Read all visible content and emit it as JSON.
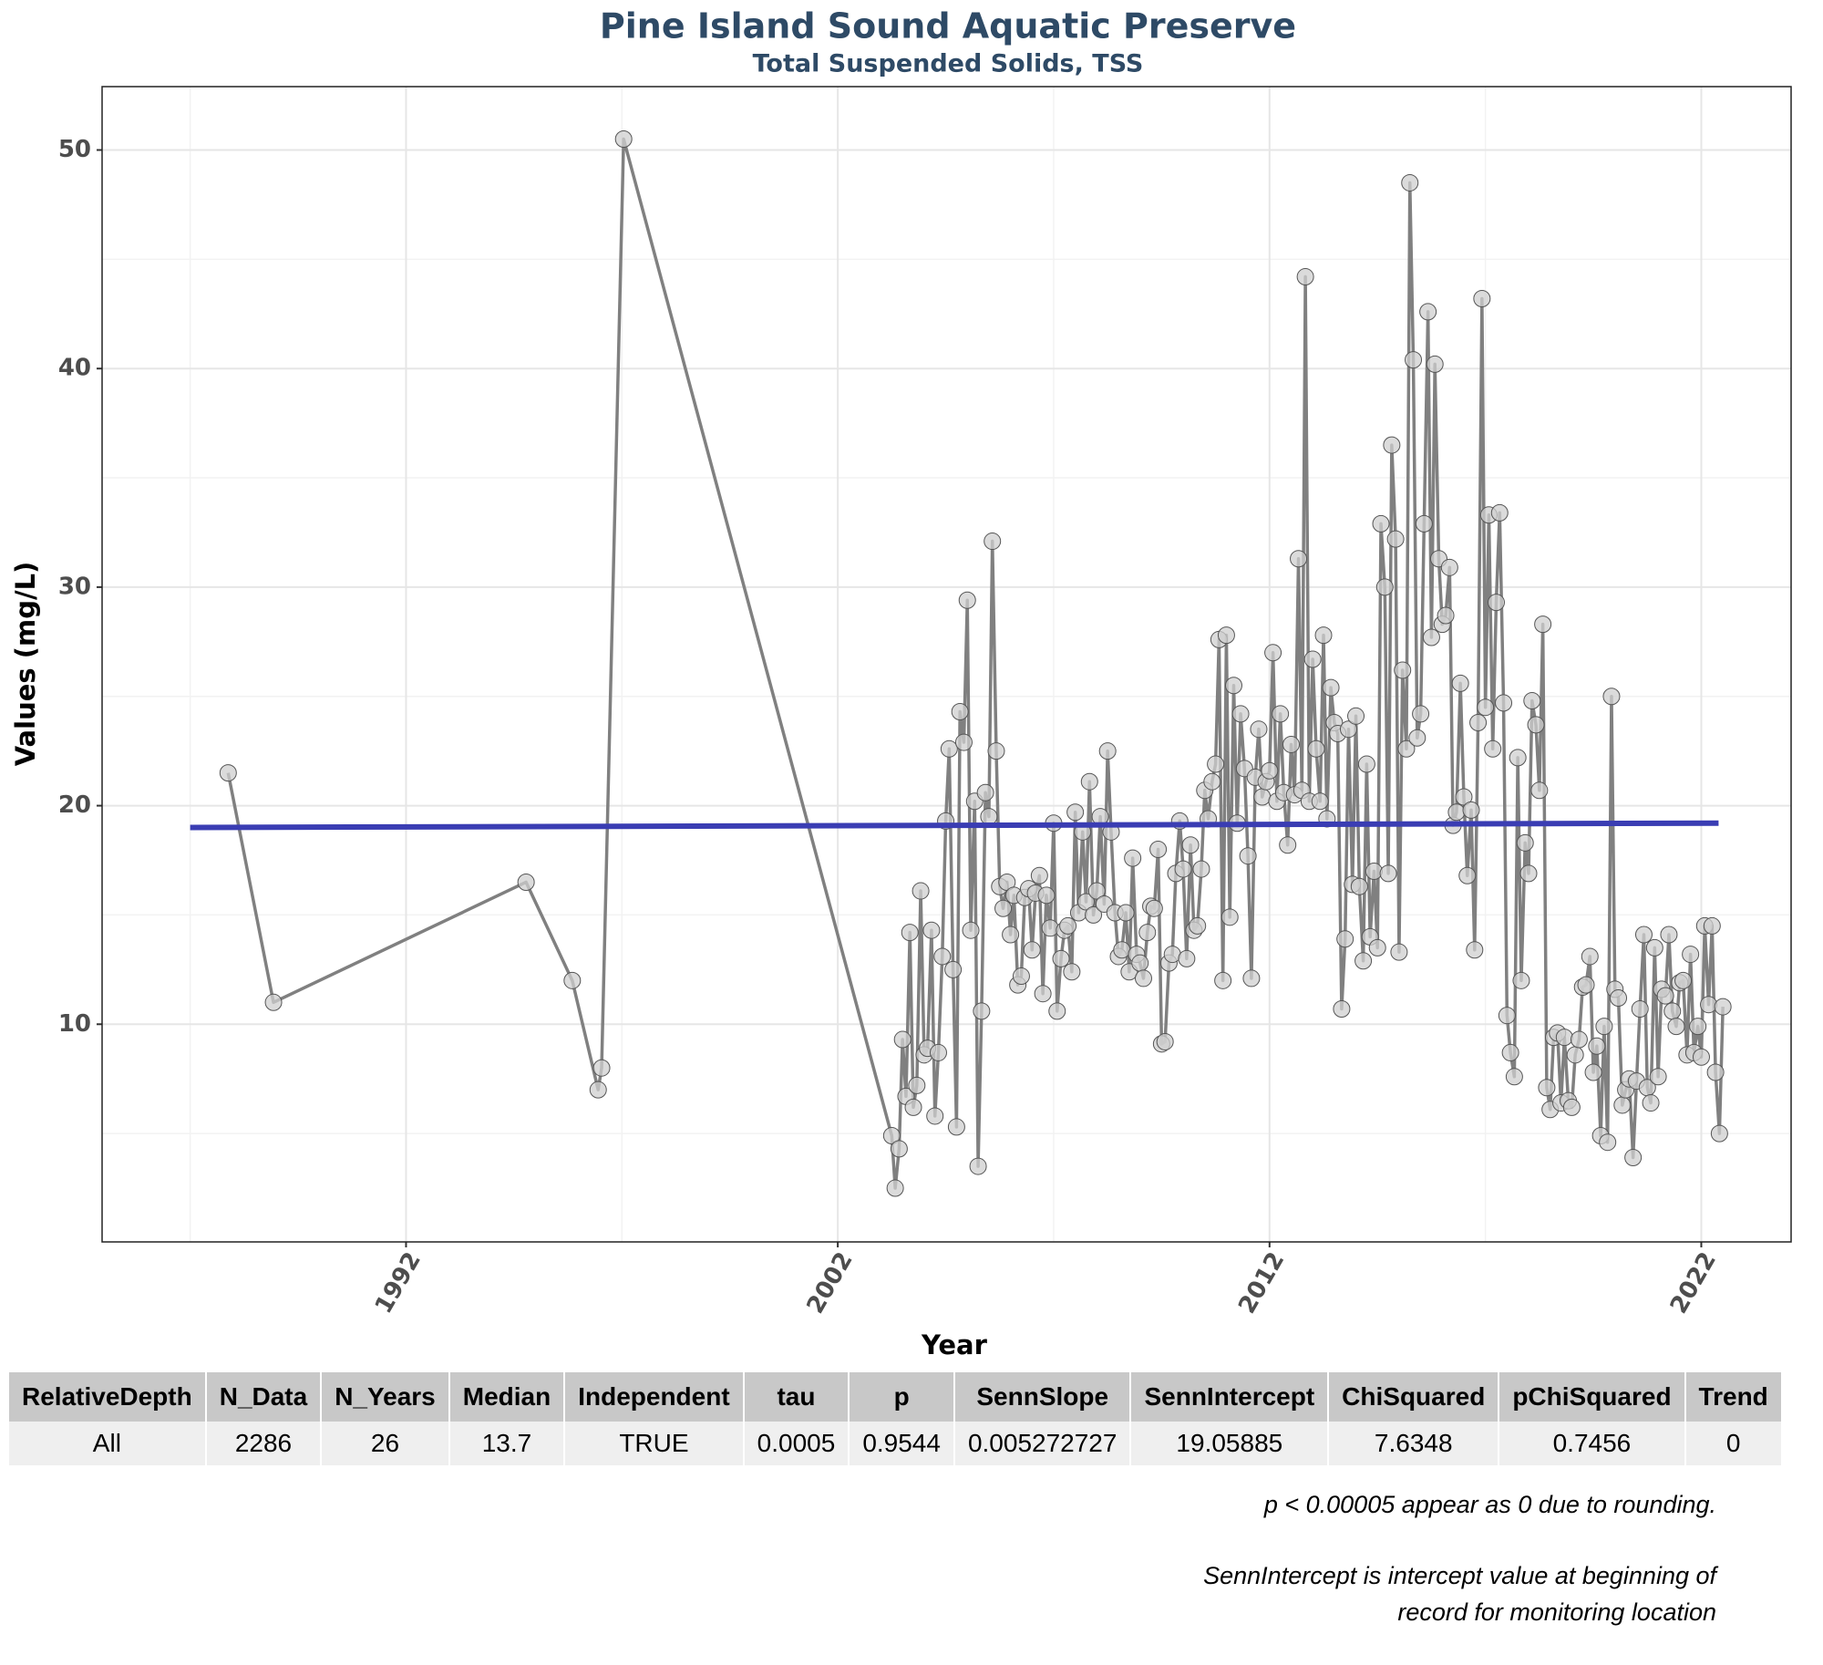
{
  "chart_data": {
    "type": "line",
    "title": "Pine Island Sound Aquatic Preserve",
    "subtitle": "Total Suspended Solids, TSS",
    "x_label": "Year",
    "y_label": "Values (mg/L)",
    "xlim": [
      1984.96,
      2024.08
    ],
    "xticks": [
      1992,
      2002,
      2012,
      2022
    ],
    "ylim": [
      0.04,
      52.9
    ],
    "yticks": [
      10,
      20,
      30,
      40,
      50
    ],
    "grid": true,
    "x": [
      1987.88,
      1988.93,
      1994.78,
      1995.85,
      1996.45,
      1996.53,
      1997.04,
      2003.25,
      2003.33,
      2003.42,
      2003.5,
      2003.58,
      2003.67,
      2003.75,
      2003.83,
      2003.92,
      2004,
      2004.08,
      2004.17,
      2004.25,
      2004.33,
      2004.42,
      2004.5,
      2004.58,
      2004.67,
      2004.75,
      2004.83,
      2004.92,
      2005,
      2005.08,
      2005.17,
      2005.25,
      2005.33,
      2005.42,
      2005.5,
      2005.58,
      2005.67,
      2005.75,
      2005.83,
      2005.92,
      2006,
      2006.08,
      2006.17,
      2006.25,
      2006.33,
      2006.42,
      2006.5,
      2006.58,
      2006.67,
      2006.75,
      2006.83,
      2006.92,
      2007,
      2007.08,
      2007.17,
      2007.25,
      2007.33,
      2007.42,
      2007.5,
      2007.58,
      2007.67,
      2007.75,
      2007.83,
      2007.92,
      2008,
      2008.08,
      2008.17,
      2008.25,
      2008.33,
      2008.42,
      2008.5,
      2008.58,
      2008.67,
      2008.75,
      2008.83,
      2008.92,
      2009,
      2009.08,
      2009.17,
      2009.25,
      2009.33,
      2009.42,
      2009.5,
      2009.58,
      2009.67,
      2009.75,
      2009.83,
      2009.92,
      2010,
      2010.08,
      2010.17,
      2010.25,
      2010.33,
      2010.42,
      2010.5,
      2010.58,
      2010.67,
      2010.75,
      2010.83,
      2010.92,
      2011,
      2011.08,
      2011.17,
      2011.25,
      2011.33,
      2011.42,
      2011.5,
      2011.58,
      2011.67,
      2011.75,
      2011.83,
      2011.92,
      2012,
      2012.08,
      2012.17,
      2012.25,
      2012.33,
      2012.42,
      2012.5,
      2012.58,
      2012.67,
      2012.75,
      2012.83,
      2012.92,
      2013,
      2013.08,
      2013.17,
      2013.25,
      2013.33,
      2013.42,
      2013.5,
      2013.58,
      2013.67,
      2013.75,
      2013.83,
      2013.92,
      2014,
      2014.08,
      2014.17,
      2014.25,
      2014.33,
      2014.42,
      2014.5,
      2014.58,
      2014.67,
      2014.75,
      2014.83,
      2014.92,
      2015,
      2015.08,
      2015.17,
      2015.25,
      2015.33,
      2015.42,
      2015.5,
      2015.58,
      2015.67,
      2015.75,
      2015.83,
      2015.92,
      2016,
      2016.08,
      2016.17,
      2016.25,
      2016.33,
      2016.42,
      2016.5,
      2016.58,
      2016.67,
      2016.75,
      2016.83,
      2016.92,
      2017,
      2017.08,
      2017.17,
      2017.25,
      2017.33,
      2017.42,
      2017.5,
      2017.58,
      2017.67,
      2017.75,
      2017.83,
      2017.92,
      2018,
      2018.08,
      2018.17,
      2018.25,
      2018.33,
      2018.42,
      2018.5,
      2018.58,
      2018.67,
      2018.75,
      2018.83,
      2018.92,
      2019,
      2019.08,
      2019.17,
      2019.25,
      2019.33,
      2019.42,
      2019.5,
      2019.58,
      2019.67,
      2019.75,
      2019.83,
      2019.92,
      2020,
      2020.08,
      2020.17,
      2020.25,
      2020.33,
      2020.42,
      2020.5,
      2020.58,
      2020.67,
      2020.75,
      2020.83,
      2020.92,
      2021,
      2021.08,
      2021.17,
      2021.25,
      2021.33,
      2021.42,
      2021.5,
      2021.58,
      2021.67,
      2021.75,
      2021.83,
      2021.92,
      2022,
      2022.08,
      2022.17,
      2022.25,
      2022.33,
      2022.42,
      2022.5
    ],
    "series": [
      {
        "color": "#808080",
        "marker_fill": "#cfcfcf",
        "marker_stroke": "#555555",
        "values": [
          21.5,
          11.0,
          16.5,
          12.0,
          7.0,
          8.0,
          50.5,
          4.9,
          2.5,
          4.3,
          9.3,
          6.7,
          14.2,
          6.2,
          7.2,
          16.1,
          8.6,
          8.9,
          14.3,
          5.8,
          8.7,
          13.1,
          19.3,
          22.6,
          12.5,
          5.3,
          24.3,
          22.9,
          29.4,
          14.3,
          20.2,
          3.5,
          10.6,
          20.6,
          19.5,
          32.1,
          22.5,
          16.3,
          15.3,
          16.5,
          14.1,
          15.9,
          11.8,
          12.2,
          15.8,
          16.2,
          13.4,
          16.0,
          16.8,
          11.4,
          15.9,
          14.4,
          19.2,
          10.6,
          13.0,
          14.3,
          14.5,
          12.4,
          19.7,
          15.1,
          18.8,
          15.6,
          21.1,
          15.0,
          16.1,
          19.5,
          15.5,
          22.5,
          18.8,
          15.1,
          13.1,
          13.4,
          15.1,
          12.4,
          17.6,
          13.2,
          12.8,
          12.1,
          14.2,
          15.4,
          15.3,
          18.0,
          9.1,
          9.2,
          12.8,
          13.2,
          16.9,
          19.3,
          17.1,
          13.0,
          18.2,
          14.3,
          14.5,
          17.1,
          20.7,
          19.4,
          21.1,
          21.9,
          27.6,
          12.0,
          27.8,
          14.9,
          25.5,
          19.2,
          24.2,
          21.7,
          17.7,
          12.1,
          21.3,
          23.5,
          20.4,
          21.1,
          21.6,
          27.0,
          20.2,
          24.2,
          20.6,
          18.2,
          22.8,
          20.5,
          31.3,
          20.7,
          44.2,
          20.2,
          26.7,
          22.6,
          20.2,
          27.8,
          19.4,
          25.4,
          23.8,
          23.3,
          10.7,
          13.9,
          23.5,
          16.4,
          24.1,
          16.3,
          12.9,
          21.9,
          14.0,
          17.0,
          13.5,
          32.9,
          30.0,
          16.9,
          36.5,
          32.2,
          13.3,
          26.2,
          22.6,
          48.5,
          40.4,
          23.1,
          24.2,
          32.9,
          42.6,
          27.7,
          40.2,
          31.3,
          28.3,
          28.7,
          30.9,
          19.1,
          19.7,
          25.6,
          20.4,
          16.8,
          19.8,
          13.4,
          23.8,
          43.2,
          24.5,
          33.3,
          22.6,
          29.3,
          33.4,
          24.7,
          10.4,
          8.7,
          7.6,
          22.2,
          12.0,
          18.3,
          16.9,
          24.8,
          23.7,
          20.7,
          28.3,
          7.1,
          6.1,
          9.4,
          9.6,
          6.4,
          9.4,
          6.5,
          6.2,
          8.6,
          9.3,
          11.7,
          11.8,
          13.1,
          7.8,
          9.0,
          4.9,
          9.9,
          4.6,
          25.0,
          11.6,
          11.2,
          6.3,
          7.0,
          7.5,
          3.9,
          7.4,
          10.7,
          14.1,
          7.1,
          6.4,
          13.5,
          7.6,
          11.6,
          11.3,
          14.1,
          10.6,
          9.9,
          11.9,
          12.0,
          8.6,
          13.2,
          8.7,
          9.9,
          8.5,
          14.5,
          10.9,
          14.5,
          7.8,
          5.0,
          10.8
        ]
      }
    ],
    "trend_line": {
      "color": "#3a3db3",
      "x": [
        1987,
        2022.4
      ],
      "values": [
        19.0,
        19.2
      ]
    }
  },
  "table": {
    "header": [
      "RelativeDepth",
      "N_Data",
      "N_Years",
      "Median",
      "Independent",
      "tau",
      "p",
      "SennSlope",
      "SennIntercept",
      "ChiSquared",
      "pChiSquared",
      "Trend"
    ],
    "rows": [
      [
        "All",
        2286,
        26,
        13.7,
        "TRUE",
        0.0005,
        0.9544,
        0.005272727,
        19.05885,
        7.6348,
        0.7456,
        0
      ]
    ]
  },
  "notes": [
    "p < 0.00005 appear as 0 due to rounding.",
    "SennIntercept is intercept value at beginning of\nrecord for monitoring location"
  ]
}
